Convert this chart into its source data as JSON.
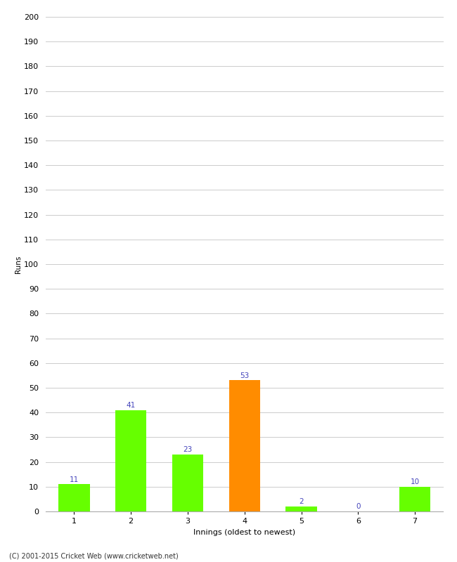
{
  "xlabel": "Innings (oldest to newest)",
  "ylabel": "Runs",
  "categories": [
    "1",
    "2",
    "3",
    "4",
    "5",
    "6",
    "7"
  ],
  "values": [
    11,
    41,
    23,
    53,
    2,
    0,
    10
  ],
  "bar_colors": [
    "#66ff00",
    "#66ff00",
    "#66ff00",
    "#ff8c00",
    "#66ff00",
    "#66ff00",
    "#66ff00"
  ],
  "label_color": "#4444bb",
  "ylim": [
    0,
    200
  ],
  "yticks": [
    0,
    10,
    20,
    30,
    40,
    50,
    60,
    70,
    80,
    90,
    100,
    110,
    120,
    130,
    140,
    150,
    160,
    170,
    180,
    190,
    200
  ],
  "background_color": "#ffffff",
  "grid_color": "#cccccc",
  "footer": "(C) 2001-2015 Cricket Web (www.cricketweb.net)",
  "label_fontsize": 7.5,
  "axis_tick_fontsize": 8,
  "axis_label_fontsize": 8,
  "ylabel_fontsize": 7.5,
  "footer_fontsize": 7
}
